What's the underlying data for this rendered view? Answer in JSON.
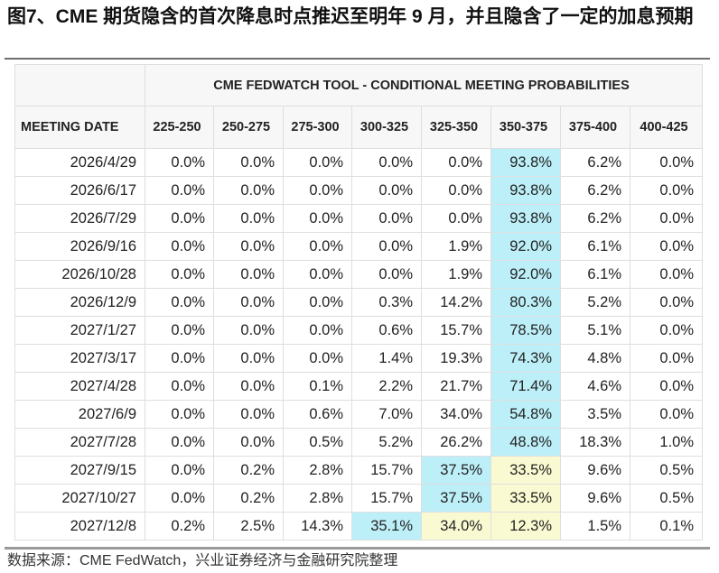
{
  "figure": {
    "title": "图7、CME 期货隐含的首次降息时点推迟至明年 9 月，并且隐含了一定的加息预期",
    "source": "数据来源：CME FedWatch，兴业证券经济与金融研究院整理"
  },
  "table": {
    "super_header": "CME FEDWATCH TOOL - CONDITIONAL MEETING PROBABILITIES",
    "columns": [
      "MEETING DATE",
      "225-250",
      "250-275",
      "275-300",
      "300-325",
      "325-350",
      "350-375",
      "375-400",
      "400-425"
    ],
    "highlight_colors": {
      "blue": "#bdeff8",
      "yellow": "#fafad2"
    },
    "rows": [
      {
        "date": "2026/4/29",
        "values": [
          "0.0%",
          "0.0%",
          "0.0%",
          "0.0%",
          "0.0%",
          "93.8%",
          "6.2%",
          "0.0%"
        ],
        "blue": 5,
        "yellow": -1
      },
      {
        "date": "2026/6/17",
        "values": [
          "0.0%",
          "0.0%",
          "0.0%",
          "0.0%",
          "0.0%",
          "93.8%",
          "6.2%",
          "0.0%"
        ],
        "blue": 5,
        "yellow": -1
      },
      {
        "date": "2026/7/29",
        "values": [
          "0.0%",
          "0.0%",
          "0.0%",
          "0.0%",
          "0.0%",
          "93.8%",
          "6.2%",
          "0.0%"
        ],
        "blue": 5,
        "yellow": -1
      },
      {
        "date": "2026/9/16",
        "values": [
          "0.0%",
          "0.0%",
          "0.0%",
          "0.0%",
          "1.9%",
          "92.0%",
          "6.1%",
          "0.0%"
        ],
        "blue": 5,
        "yellow": -1
      },
      {
        "date": "2026/10/28",
        "values": [
          "0.0%",
          "0.0%",
          "0.0%",
          "0.0%",
          "1.9%",
          "92.0%",
          "6.1%",
          "0.0%"
        ],
        "blue": 5,
        "yellow": -1
      },
      {
        "date": "2026/12/9",
        "values": [
          "0.0%",
          "0.0%",
          "0.0%",
          "0.3%",
          "14.2%",
          "80.3%",
          "5.2%",
          "0.0%"
        ],
        "blue": 5,
        "yellow": -1
      },
      {
        "date": "2027/1/27",
        "values": [
          "0.0%",
          "0.0%",
          "0.0%",
          "0.6%",
          "15.7%",
          "78.5%",
          "5.1%",
          "0.0%"
        ],
        "blue": 5,
        "yellow": -1
      },
      {
        "date": "2027/3/17",
        "values": [
          "0.0%",
          "0.0%",
          "0.0%",
          "1.4%",
          "19.3%",
          "74.3%",
          "4.8%",
          "0.0%"
        ],
        "blue": 5,
        "yellow": -1
      },
      {
        "date": "2027/4/28",
        "values": [
          "0.0%",
          "0.0%",
          "0.1%",
          "2.2%",
          "21.7%",
          "71.4%",
          "4.6%",
          "0.0%"
        ],
        "blue": 5,
        "yellow": -1
      },
      {
        "date": "2027/6/9",
        "values": [
          "0.0%",
          "0.0%",
          "0.6%",
          "7.0%",
          "34.0%",
          "54.8%",
          "3.5%",
          "0.0%"
        ],
        "blue": 5,
        "yellow": -1
      },
      {
        "date": "2027/7/28",
        "values": [
          "0.0%",
          "0.0%",
          "0.5%",
          "5.2%",
          "26.2%",
          "48.8%",
          "18.3%",
          "1.0%"
        ],
        "blue": 5,
        "yellow": -1
      },
      {
        "date": "2027/9/15",
        "values": [
          "0.0%",
          "0.2%",
          "2.8%",
          "15.7%",
          "37.5%",
          "33.5%",
          "9.6%",
          "0.5%"
        ],
        "blue": 4,
        "yellow": 5
      },
      {
        "date": "2027/10/27",
        "values": [
          "0.0%",
          "0.2%",
          "2.8%",
          "15.7%",
          "37.5%",
          "33.5%",
          "9.6%",
          "0.5%"
        ],
        "blue": 4,
        "yellow": 5
      },
      {
        "date": "2027/12/8",
        "values": [
          "0.2%",
          "2.5%",
          "14.3%",
          "35.1%",
          "34.0%",
          "12.3%",
          "1.5%",
          "0.1%"
        ],
        "blue": 3,
        "yellow": [
          4,
          5
        ]
      }
    ]
  }
}
